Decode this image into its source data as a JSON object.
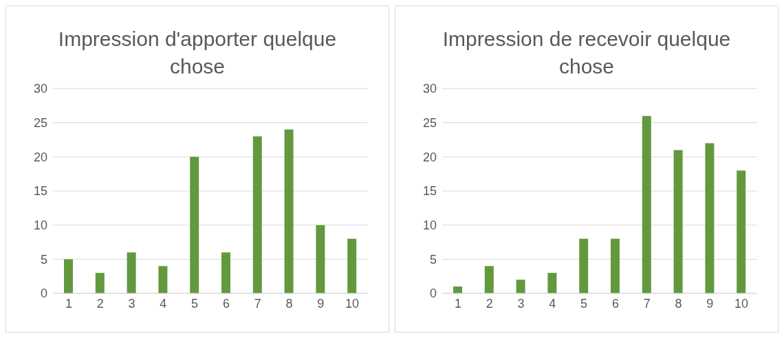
{
  "chart_data": [
    {
      "type": "bar",
      "title": "Impression d'apporter quelque chose",
      "categories": [
        "1",
        "2",
        "3",
        "4",
        "5",
        "6",
        "7",
        "8",
        "9",
        "10"
      ],
      "series": [
        {
          "color": "#62993e",
          "values": [
            5,
            3,
            6,
            4,
            20,
            6,
            23,
            24,
            10,
            8
          ]
        }
      ],
      "ylim": [
        0,
        30
      ],
      "yticks": [
        0,
        5,
        10,
        15,
        20,
        25,
        30
      ],
      "grid": "y"
    },
    {
      "type": "bar",
      "title": "Impression de recevoir quelque chose",
      "categories": [
        "1",
        "2",
        "3",
        "4",
        "5",
        "6",
        "7",
        "8",
        "9",
        "10"
      ],
      "series": [
        {
          "color": "#62993e",
          "values": [
            1,
            4,
            2,
            3,
            8,
            8,
            26,
            21,
            22,
            18
          ]
        }
      ],
      "ylim": [
        0,
        30
      ],
      "yticks": [
        0,
        5,
        10,
        15,
        20,
        25,
        30
      ],
      "grid": "y"
    }
  ]
}
